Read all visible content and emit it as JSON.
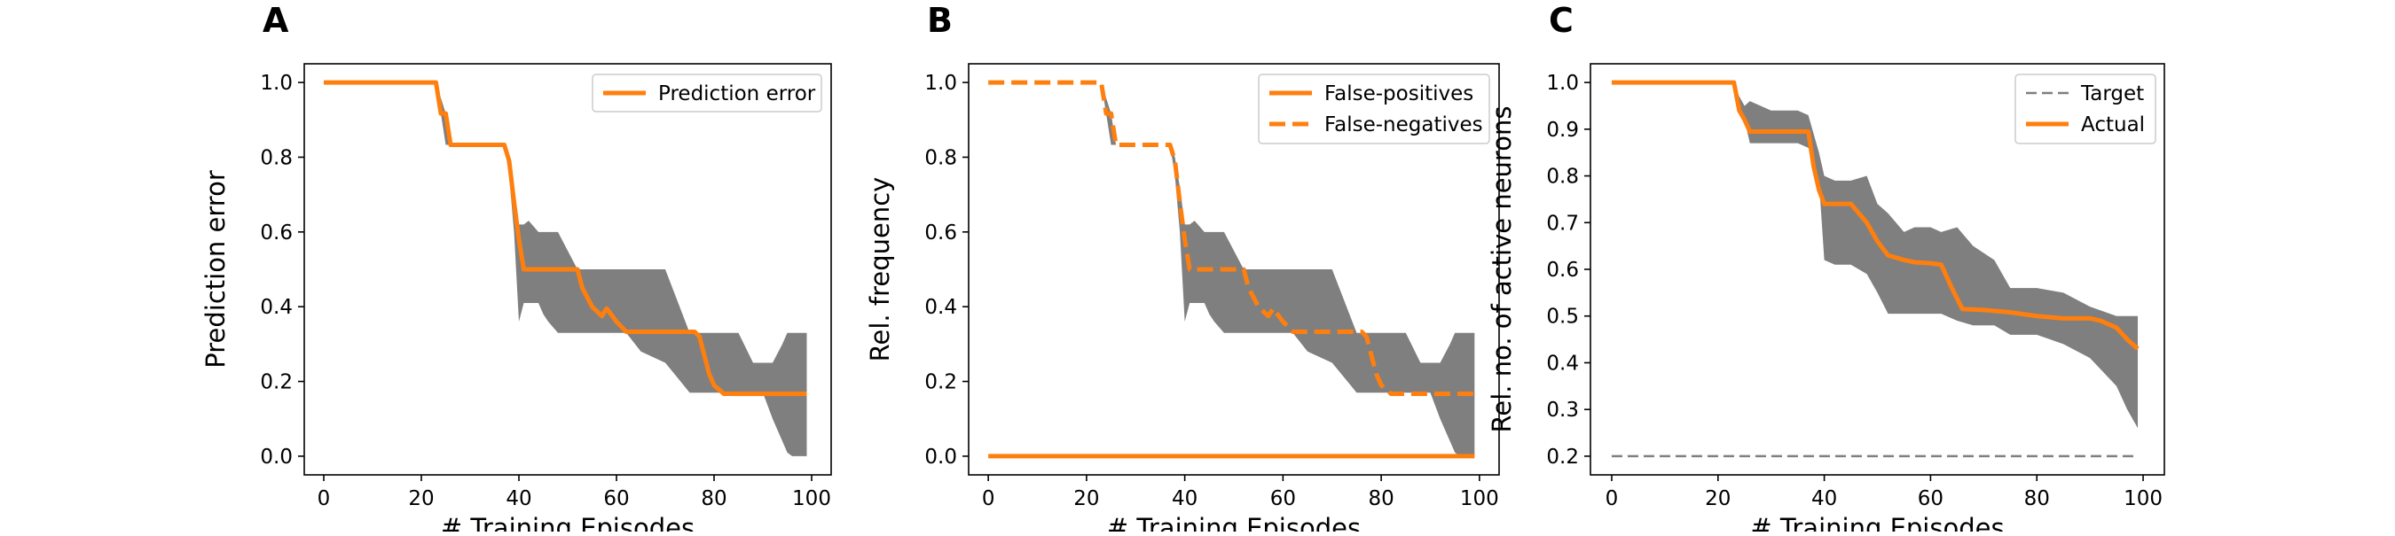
{
  "colors": {
    "actual": "#ff7f0e",
    "band": "#7f7f7f",
    "target": "#7f7f7f",
    "axis": "#000000",
    "legend_border": "#cccccc"
  },
  "chart_data": [
    {
      "type": "line",
      "panel_letter": "A",
      "xlabel": "# Training Episodes",
      "ylabel": "Prediction error",
      "xlim": [
        -4,
        104
      ],
      "ylim": [
        -0.05,
        1.05
      ],
      "xticks": [
        0,
        20,
        40,
        60,
        80,
        100
      ],
      "yticks": [
        0.0,
        0.2,
        0.4,
        0.6,
        0.8,
        1.0
      ],
      "xtick_labels": [
        "0",
        "20",
        "40",
        "60",
        "80",
        "100"
      ],
      "ytick_labels": [
        "0.0",
        "0.2",
        "0.4",
        "0.6",
        "0.8",
        "1.0"
      ],
      "grid": false,
      "legend_position": "upper right",
      "legend": [
        {
          "label": "Prediction error",
          "style": "solid"
        }
      ],
      "band": {
        "x": [
          0,
          22,
          23,
          25,
          26,
          37,
          38,
          39,
          40,
          41,
          42,
          44,
          45,
          46,
          48,
          52,
          53,
          55,
          57,
          60,
          62,
          65,
          70,
          75,
          78,
          80,
          85,
          88,
          90,
          92,
          94,
          95,
          96,
          98,
          99
        ],
        "upper": [
          1.0,
          1.0,
          1.0,
          0.917,
          0.833,
          0.833,
          0.8,
          0.72,
          0.62,
          0.62,
          0.63,
          0.6,
          0.6,
          0.6,
          0.6,
          0.5,
          0.5,
          0.5,
          0.5,
          0.5,
          0.5,
          0.5,
          0.5,
          0.33,
          0.33,
          0.33,
          0.33,
          0.25,
          0.25,
          0.25,
          0.3,
          0.33,
          0.33,
          0.33,
          0.33
        ],
        "lower": [
          1.0,
          1.0,
          1.0,
          0.833,
          0.833,
          0.833,
          0.75,
          0.6,
          0.36,
          0.41,
          0.41,
          0.41,
          0.38,
          0.36,
          0.33,
          0.33,
          0.33,
          0.33,
          0.33,
          0.33,
          0.33,
          0.28,
          0.25,
          0.17,
          0.17,
          0.17,
          0.17,
          0.17,
          0.17,
          0.1,
          0.04,
          0.01,
          0.0,
          0.0,
          0.0
        ]
      },
      "series": [
        {
          "name": "Prediction error",
          "style": "solid",
          "x": [
            0,
            23,
            24,
            25,
            26,
            37,
            38,
            39,
            40,
            41,
            42,
            52,
            53,
            55,
            57,
            58,
            60,
            62,
            65,
            75,
            76,
            77,
            78,
            79,
            80,
            82,
            85,
            90,
            95,
            99
          ],
          "y": [
            1.0,
            1.0,
            0.917,
            0.917,
            0.833,
            0.833,
            0.79,
            0.68,
            0.58,
            0.5,
            0.5,
            0.5,
            0.45,
            0.4,
            0.375,
            0.395,
            0.36,
            0.333,
            0.333,
            0.333,
            0.333,
            0.32,
            0.27,
            0.22,
            0.19,
            0.167,
            0.167,
            0.167,
            0.167,
            0.167
          ]
        }
      ]
    },
    {
      "type": "line",
      "panel_letter": "B",
      "xlabel": "# Training Episodes",
      "ylabel": "Rel. frequency",
      "xlim": [
        -4,
        104
      ],
      "ylim": [
        -0.05,
        1.05
      ],
      "xticks": [
        0,
        20,
        40,
        60,
        80,
        100
      ],
      "yticks": [
        0.0,
        0.2,
        0.4,
        0.6,
        0.8,
        1.0
      ],
      "xtick_labels": [
        "0",
        "20",
        "40",
        "60",
        "80",
        "100"
      ],
      "ytick_labels": [
        "0.0",
        "0.2",
        "0.4",
        "0.6",
        "0.8",
        "1.0"
      ],
      "grid": false,
      "legend_position": "upper right",
      "legend": [
        {
          "label": "False-positives",
          "style": "solid"
        },
        {
          "label": "False-negatives",
          "style": "dashed"
        }
      ],
      "band": {
        "x": [
          0,
          22,
          23,
          25,
          26,
          37,
          38,
          39,
          40,
          41,
          42,
          44,
          45,
          46,
          48,
          52,
          53,
          55,
          57,
          60,
          62,
          65,
          70,
          75,
          78,
          80,
          85,
          88,
          90,
          92,
          94,
          95,
          96,
          98,
          99
        ],
        "upper": [
          1.0,
          1.0,
          1.0,
          0.917,
          0.833,
          0.833,
          0.8,
          0.72,
          0.62,
          0.62,
          0.63,
          0.6,
          0.6,
          0.6,
          0.6,
          0.5,
          0.5,
          0.5,
          0.5,
          0.5,
          0.5,
          0.5,
          0.5,
          0.33,
          0.33,
          0.33,
          0.33,
          0.25,
          0.25,
          0.25,
          0.3,
          0.33,
          0.33,
          0.33,
          0.33
        ],
        "lower": [
          1.0,
          1.0,
          1.0,
          0.833,
          0.833,
          0.833,
          0.75,
          0.6,
          0.36,
          0.41,
          0.41,
          0.41,
          0.38,
          0.36,
          0.33,
          0.33,
          0.33,
          0.33,
          0.33,
          0.33,
          0.33,
          0.28,
          0.25,
          0.17,
          0.17,
          0.17,
          0.17,
          0.17,
          0.17,
          0.1,
          0.04,
          0.01,
          0.0,
          0.0,
          0.0
        ]
      },
      "series": [
        {
          "name": "False-positives",
          "style": "solid",
          "x": [
            0,
            99
          ],
          "y": [
            0.0,
            0.0
          ]
        },
        {
          "name": "False-negatives",
          "style": "dashed",
          "x": [
            0,
            23,
            24,
            25,
            26,
            37,
            38,
            39,
            40,
            41,
            42,
            52,
            53,
            55,
            57,
            58,
            60,
            62,
            65,
            75,
            76,
            77,
            78,
            79,
            80,
            82,
            85,
            90,
            95,
            99
          ],
          "y": [
            1.0,
            1.0,
            0.917,
            0.917,
            0.833,
            0.833,
            0.79,
            0.68,
            0.58,
            0.5,
            0.5,
            0.5,
            0.45,
            0.4,
            0.375,
            0.395,
            0.36,
            0.333,
            0.333,
            0.333,
            0.333,
            0.32,
            0.27,
            0.22,
            0.19,
            0.167,
            0.167,
            0.167,
            0.167,
            0.167
          ]
        }
      ]
    },
    {
      "type": "line",
      "panel_letter": "C",
      "xlabel": "# Training Episodes",
      "ylabel": "Rel. no. of active neurons",
      "xlim": [
        -4,
        104
      ],
      "ylim": [
        0.16,
        1.04
      ],
      "xticks": [
        0,
        20,
        40,
        60,
        80,
        100
      ],
      "yticks": [
        0.2,
        0.3,
        0.4,
        0.5,
        0.6,
        0.7,
        0.8,
        0.9,
        1.0
      ],
      "xtick_labels": [
        "0",
        "20",
        "40",
        "60",
        "80",
        "100"
      ],
      "ytick_labels": [
        "0.2",
        "0.3",
        "0.4",
        "0.5",
        "0.6",
        "0.7",
        "0.8",
        "0.9",
        "1.0"
      ],
      "grid": false,
      "legend_position": "upper right",
      "legend": [
        {
          "label": "Target",
          "style": "dashed-thin"
        },
        {
          "label": "Actual",
          "style": "solid"
        }
      ],
      "band": {
        "x": [
          0,
          22,
          23,
          24,
          25,
          26,
          30,
          35,
          37,
          38,
          39,
          40,
          42,
          45,
          48,
          50,
          52,
          55,
          57,
          60,
          62,
          65,
          68,
          72,
          75,
          80,
          85,
          90,
          95,
          97,
          99
        ],
        "upper": [
          1.0,
          1.0,
          1.0,
          0.97,
          0.95,
          0.96,
          0.94,
          0.94,
          0.93,
          0.89,
          0.85,
          0.8,
          0.79,
          0.79,
          0.8,
          0.74,
          0.72,
          0.68,
          0.69,
          0.69,
          0.68,
          0.69,
          0.65,
          0.62,
          0.56,
          0.56,
          0.55,
          0.52,
          0.5,
          0.5,
          0.5
        ],
        "lower": [
          1.0,
          1.0,
          1.0,
          0.95,
          0.92,
          0.87,
          0.87,
          0.87,
          0.86,
          0.83,
          0.79,
          0.62,
          0.61,
          0.61,
          0.59,
          0.55,
          0.505,
          0.505,
          0.505,
          0.505,
          0.505,
          0.49,
          0.48,
          0.48,
          0.46,
          0.46,
          0.44,
          0.41,
          0.35,
          0.3,
          0.26
        ]
      },
      "series": [
        {
          "name": "Target",
          "style": "dashed-thin",
          "x": [
            0,
            99
          ],
          "y": [
            0.2,
            0.2
          ]
        },
        {
          "name": "Actual",
          "style": "solid",
          "x": [
            0,
            23,
            24,
            25,
            26,
            30,
            35,
            37,
            38,
            39,
            40,
            42,
            45,
            48,
            50,
            52,
            55,
            57,
            60,
            62,
            64,
            66,
            70,
            75,
            80,
            85,
            90,
            92,
            95,
            97,
            99
          ],
          "y": [
            1.0,
            1.0,
            0.94,
            0.92,
            0.895,
            0.895,
            0.895,
            0.895,
            0.82,
            0.77,
            0.74,
            0.74,
            0.74,
            0.7,
            0.66,
            0.63,
            0.62,
            0.615,
            0.613,
            0.61,
            0.56,
            0.515,
            0.513,
            0.508,
            0.5,
            0.495,
            0.495,
            0.49,
            0.475,
            0.45,
            0.43
          ]
        }
      ]
    }
  ]
}
